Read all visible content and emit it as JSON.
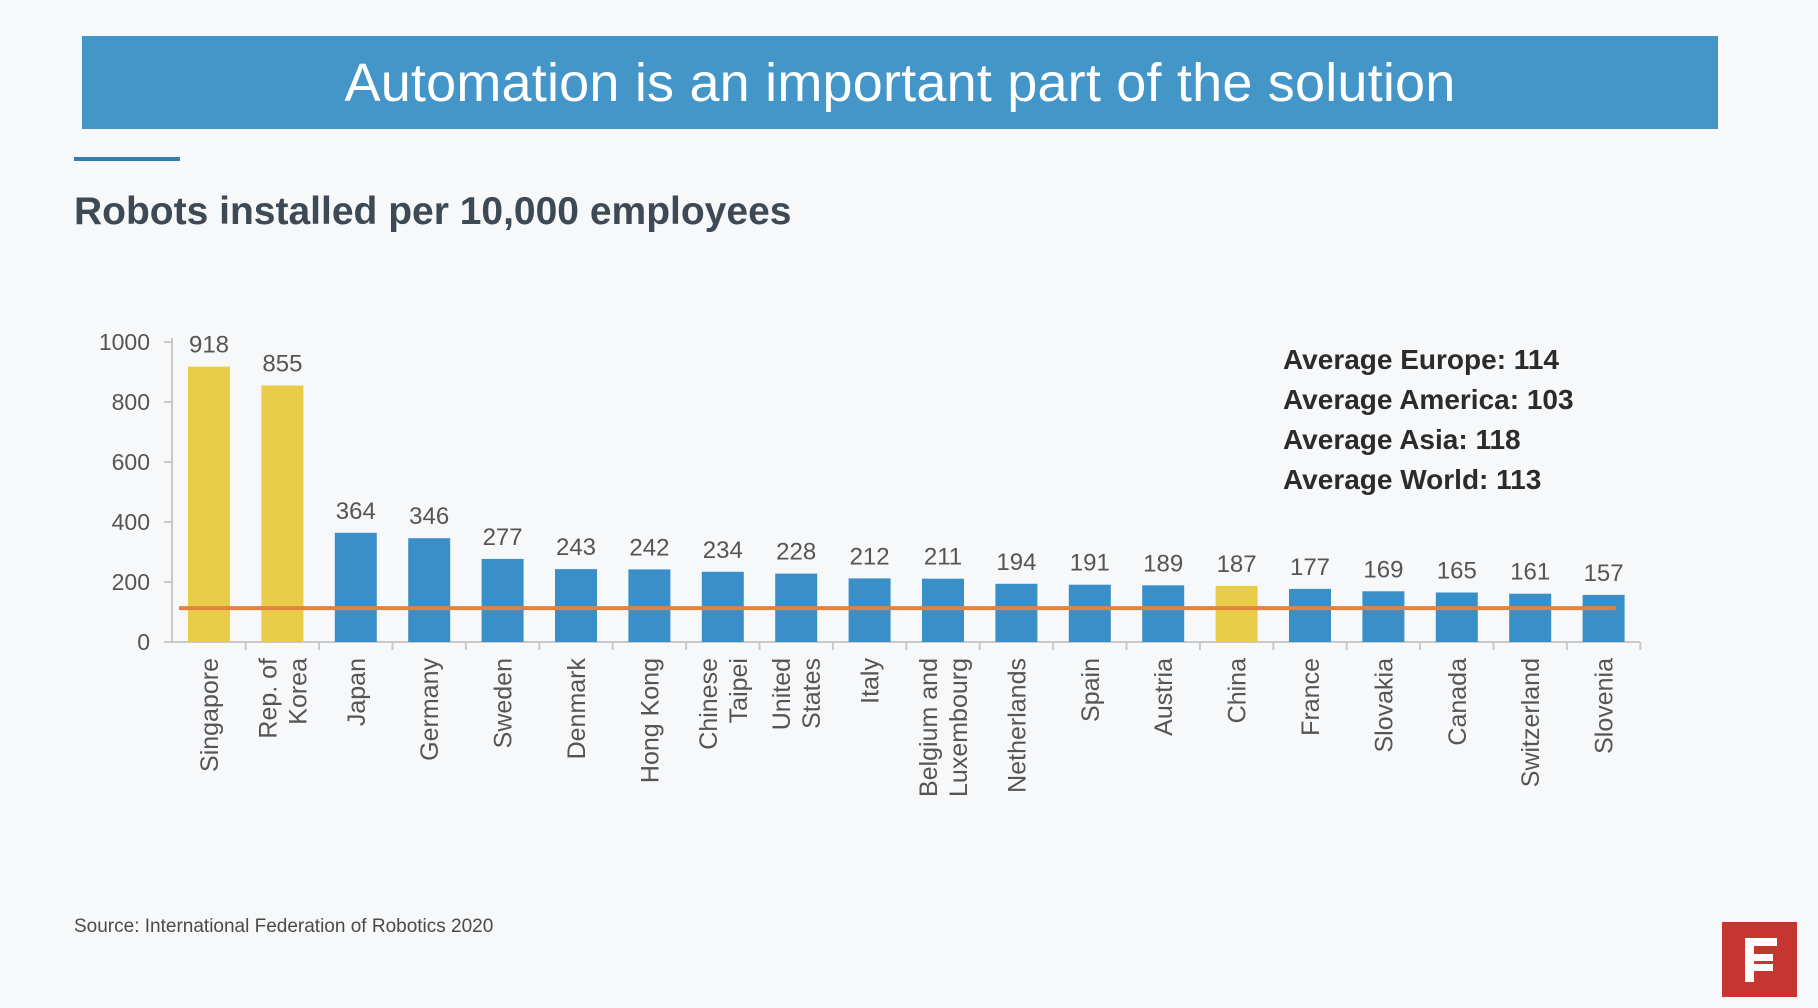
{
  "header": {
    "title": "Automation is an important part of the solution",
    "subtitle": "Robots installed per 10,000 employees"
  },
  "averages": [
    "Average Europe: 114",
    "Average America: 103",
    "Average Asia: 118",
    "Average World: 113"
  ],
  "footer": {
    "source": "Source: International Federation of Robotics 2020"
  },
  "colors": {
    "banner": "#4396c7",
    "bar_default": "#3a8fc8",
    "bar_highlight": "#e9cc47",
    "average_line": "#e2823f"
  },
  "logo": {
    "icon": "f-logo-icon"
  },
  "chart_data": {
    "type": "bar",
    "title": "Robots installed per 10,000 employees",
    "xlabel": "",
    "ylabel": "",
    "ylim": [
      0,
      1000
    ],
    "yticks": [
      0,
      200,
      400,
      600,
      800,
      1000
    ],
    "categories": [
      [
        "Singapore"
      ],
      [
        "Rep. of",
        "Korea"
      ],
      [
        "Japan"
      ],
      [
        "Germany"
      ],
      [
        "Sweden"
      ],
      [
        "Denmark"
      ],
      [
        "Hong Kong"
      ],
      [
        "Chinese",
        "Taipei"
      ],
      [
        "United",
        "States"
      ],
      [
        "Italy"
      ],
      [
        "Belgium and",
        "Luxembourg"
      ],
      [
        "Netherlands"
      ],
      [
        "Spain"
      ],
      [
        "Austria"
      ],
      [
        "China"
      ],
      [
        "France"
      ],
      [
        "Slovakia"
      ],
      [
        "Canada"
      ],
      [
        "Switzerland"
      ],
      [
        "Slovenia"
      ]
    ],
    "values": [
      918,
      855,
      364,
      346,
      277,
      243,
      242,
      234,
      228,
      212,
      211,
      194,
      191,
      189,
      187,
      177,
      169,
      165,
      161,
      157
    ],
    "highlighted": [
      true,
      true,
      false,
      false,
      false,
      false,
      false,
      false,
      false,
      false,
      false,
      false,
      false,
      false,
      true,
      false,
      false,
      false,
      false,
      false
    ],
    "reference_line": {
      "label": "Average World",
      "value": 113
    }
  }
}
